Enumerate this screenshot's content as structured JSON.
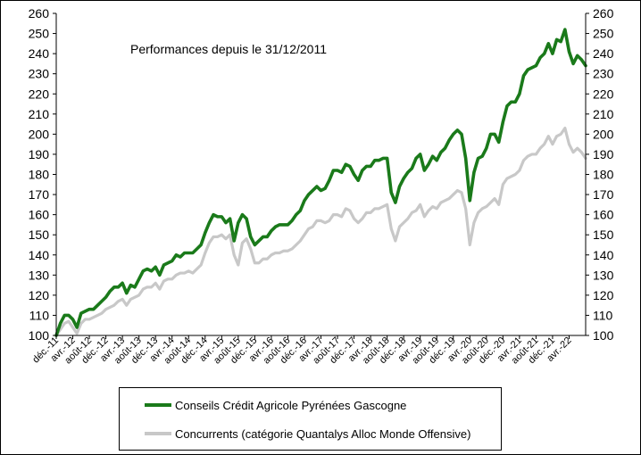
{
  "chart_data": {
    "type": "line",
    "title": "Performances depuis le 31/12/2011",
    "xlabel": "",
    "ylabel": "",
    "ylim": [
      100,
      260
    ],
    "y_ticks": [
      100,
      110,
      120,
      130,
      140,
      150,
      160,
      170,
      180,
      190,
      200,
      210,
      220,
      230,
      240,
      250,
      260
    ],
    "x_tick_labels": [
      "déc.-11",
      "avr.-12",
      "août-12",
      "déc.-12",
      "avr.-13",
      "août-13",
      "déc.-13",
      "avr.-14",
      "août-14",
      "déc.-14",
      "avr.-15",
      "août-15",
      "déc.-15",
      "avr.-16",
      "août-16",
      "déc.-16",
      "avr.-17",
      "août-17",
      "déc.-17",
      "avr.-18",
      "août-18",
      "déc.-18",
      "avr.-19",
      "août-19",
      "déc.-19",
      "avr.-20",
      "août-20",
      "déc.-20",
      "avr.-21",
      "août-21",
      "déc.-21",
      "avr.-22"
    ],
    "x_tick_step_months": 4,
    "series": [
      {
        "name": "Conseils Crédit Agricole Pyrénées Gascogne",
        "color": "#1a7a1a",
        "values": [
          100,
          106,
          110,
          110,
          108,
          104,
          111,
          112,
          113,
          113,
          115,
          117,
          119,
          122,
          124,
          124,
          126,
          121,
          125,
          124,
          128,
          132,
          133,
          132,
          134,
          130,
          135,
          136,
          137,
          140,
          139,
          141,
          141,
          141,
          143,
          145,
          151,
          156,
          160,
          159,
          159,
          156,
          158,
          147,
          156,
          160,
          158,
          149,
          145,
          147,
          149,
          149,
          152,
          154,
          155,
          155,
          155,
          157,
          160,
          162,
          167,
          170,
          172,
          174,
          172,
          173,
          177,
          182,
          182,
          181,
          185,
          184,
          180,
          177,
          182,
          184,
          184,
          187,
          187,
          188,
          188,
          171,
          166,
          174,
          178,
          181,
          183,
          188,
          190,
          182,
          185,
          189,
          187,
          191,
          193,
          197,
          200,
          202,
          200,
          188,
          167,
          181,
          188,
          189,
          193,
          200,
          200,
          196,
          206,
          214,
          216,
          216,
          220,
          229,
          232,
          233,
          234,
          238,
          240,
          245,
          240,
          247,
          246,
          252,
          241,
          235,
          239,
          237,
          234
        ]
      },
      {
        "name": "Concurrents (catégorie Quantalys Alloc Monde Offensive)",
        "color": "#c8c8c8",
        "values": [
          100,
          103,
          106,
          107,
          104,
          101,
          106,
          108,
          108,
          109,
          110,
          111,
          113,
          114,
          115,
          117,
          118,
          115,
          118,
          119,
          120,
          123,
          124,
          124,
          126,
          123,
          127,
          128,
          128,
          130,
          131,
          131,
          132,
          131,
          133,
          135,
          141,
          146,
          149,
          149,
          150,
          148,
          150,
          140,
          135,
          146,
          148,
          143,
          136,
          136,
          138,
          138,
          140,
          141,
          141,
          142,
          142,
          143,
          145,
          147,
          150,
          153,
          154,
          157,
          157,
          156,
          157,
          160,
          160,
          159,
          163,
          162,
          158,
          156,
          158,
          161,
          161,
          163,
          163,
          164,
          165,
          153,
          147,
          154,
          156,
          158,
          161,
          162,
          165,
          159,
          162,
          164,
          163,
          166,
          167,
          168,
          170,
          172,
          171,
          163,
          145,
          156,
          161,
          163,
          164,
          166,
          168,
          165,
          175,
          178,
          179,
          180,
          182,
          187,
          189,
          190,
          190,
          193,
          195,
          199,
          195,
          199,
          200,
          203,
          195,
          191,
          193,
          191,
          188
        ]
      }
    ]
  }
}
